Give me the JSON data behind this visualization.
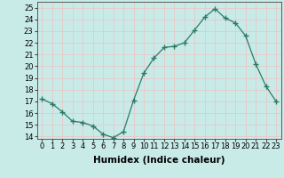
{
  "x": [
    0,
    1,
    2,
    3,
    4,
    5,
    6,
    7,
    8,
    9,
    10,
    11,
    12,
    13,
    14,
    15,
    16,
    17,
    18,
    19,
    20,
    21,
    22,
    23
  ],
  "y": [
    17.2,
    16.8,
    16.1,
    15.3,
    15.2,
    14.9,
    14.2,
    13.9,
    14.4,
    17.1,
    19.4,
    20.7,
    21.6,
    21.7,
    22.0,
    23.1,
    24.2,
    24.9,
    24.1,
    23.7,
    22.6,
    20.2,
    18.3,
    17.0
  ],
  "line_color": "#2a7a6a",
  "marker": "+",
  "marker_size": 4,
  "bg_color": "#c8ebe8",
  "grid_color": "#e8c8c8",
  "xlabel": "Humidex (Indice chaleur)",
  "xlim": [
    -0.5,
    23.5
  ],
  "ylim": [
    13.8,
    25.5
  ],
  "yticks": [
    14,
    15,
    16,
    17,
    18,
    19,
    20,
    21,
    22,
    23,
    24,
    25
  ],
  "xticks": [
    0,
    1,
    2,
    3,
    4,
    5,
    6,
    7,
    8,
    9,
    10,
    11,
    12,
    13,
    14,
    15,
    16,
    17,
    18,
    19,
    20,
    21,
    22,
    23
  ],
  "xtick_labels": [
    "0",
    "1",
    "2",
    "3",
    "4",
    "5",
    "6",
    "7",
    "8",
    "9",
    "10",
    "11",
    "12",
    "13",
    "14",
    "15",
    "16",
    "17",
    "18",
    "19",
    "20",
    "21",
    "22",
    "23"
  ],
  "label_fontsize": 7.5,
  "tick_fontsize": 6.0
}
